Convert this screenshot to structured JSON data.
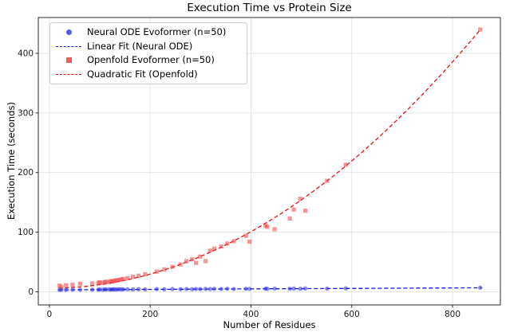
{
  "chart_data": {
    "type": "scatter",
    "title": "Execution Time vs Protein Size",
    "xlabel": "Number of Residues",
    "ylabel": "Execution Time (seconds)",
    "xlim": [
      -22,
      895
    ],
    "ylim": [
      -22,
      460
    ],
    "xticks": [
      0,
      200,
      400,
      600,
      800
    ],
    "yticks": [
      0,
      100,
      200,
      300,
      400
    ],
    "grid": true,
    "colors": {
      "grid": "#e3e3e3",
      "spine": "#2b2b2b",
      "text": "#1a1a1a",
      "neural_ode": "#3030e1",
      "openfold": "#ec3e3e",
      "linear_fit": "#1414dd",
      "quadratic_fit": "#e41414"
    },
    "legend": {
      "position": "upper-left",
      "items": [
        "Neural ODE Evoformer (n=50)",
        "Linear Fit (Neural ODE)",
        "Openfold Evoformer (n=50)",
        "Quadratic Fit (Openfold)"
      ]
    },
    "series": [
      {
        "id": "neural-ode",
        "name": "Neural ODE Evoformer (n=50)",
        "marker": "circle",
        "color": "#3030e1",
        "opacity": 0.55,
        "x": [
          20,
          24,
          33,
          46,
          61,
          85,
          97,
          100,
          106,
          110,
          113,
          119,
          122,
          125,
          128,
          131,
          135,
          139,
          143,
          147,
          155,
          166,
          177,
          190,
          213,
          228,
          244,
          260,
          272,
          283,
          291,
          299,
          310,
          319,
          327,
          341,
          353,
          366,
          390,
          397,
          429,
          432,
          447,
          477,
          485,
          498,
          508,
          551,
          588,
          855
        ],
        "y": [
          3.2,
          3.5,
          3.3,
          3.6,
          3.4,
          3.8,
          3.6,
          4.0,
          3.7,
          4.1,
          3.9,
          4.2,
          3.8,
          4.0,
          4.3,
          3.9,
          4.1,
          4.4,
          4.0,
          4.2,
          4.3,
          4.1,
          4.5,
          4.2,
          4.6,
          4.3,
          4.7,
          4.4,
          4.8,
          4.5,
          4.9,
          4.6,
          5.0,
          4.7,
          5.1,
          4.8,
          5.2,
          4.9,
          5.3,
          5.0,
          5.4,
          5.1,
          5.5,
          5.2,
          5.6,
          5.3,
          5.7,
          5.4,
          5.8,
          7.0
        ]
      },
      {
        "id": "openfold",
        "name": "Openfold Evoformer (n=50)",
        "marker": "square",
        "color": "#ec3e3e",
        "opacity": 0.55,
        "x": [
          20,
          24,
          33,
          46,
          61,
          85,
          97,
          100,
          106,
          110,
          113,
          119,
          122,
          125,
          128,
          131,
          135,
          139,
          143,
          147,
          155,
          166,
          177,
          190,
          213,
          228,
          244,
          260,
          272,
          283,
          291,
          299,
          310,
          319,
          327,
          341,
          353,
          366,
          390,
          397,
          429,
          432,
          447,
          477,
          485,
          498,
          508,
          551,
          588,
          855
        ],
        "y": [
          10.5,
          8.5,
          11,
          12,
          13.5,
          14,
          15,
          16,
          15,
          16.5,
          17,
          16.5,
          18,
          17.5,
          18,
          19,
          19.5,
          20,
          21,
          21.5,
          23,
          25.5,
          27,
          29.5,
          34,
          37.5,
          42,
          46,
          51.5,
          54.5,
          48.5,
          59,
          51.5,
          69,
          72.5,
          76,
          81,
          85,
          94,
          84,
          111,
          109,
          105,
          123,
          138,
          156,
          136,
          186,
          213,
          440
        ]
      }
    ],
    "fits": [
      {
        "id": "linear-fit",
        "name": "Linear Fit (Neural ODE)",
        "color": "#1414dd",
        "coeffs": [
          3.2,
          0.0042
        ],
        "x_range": [
          18,
          858
        ]
      },
      {
        "id": "quadratic-fit",
        "name": "Quadratic Fit (Openfold)",
        "color": "#e41414",
        "coeffs": [
          6,
          0,
          0.000593
        ],
        "x_range": [
          18,
          856
        ]
      }
    ]
  }
}
